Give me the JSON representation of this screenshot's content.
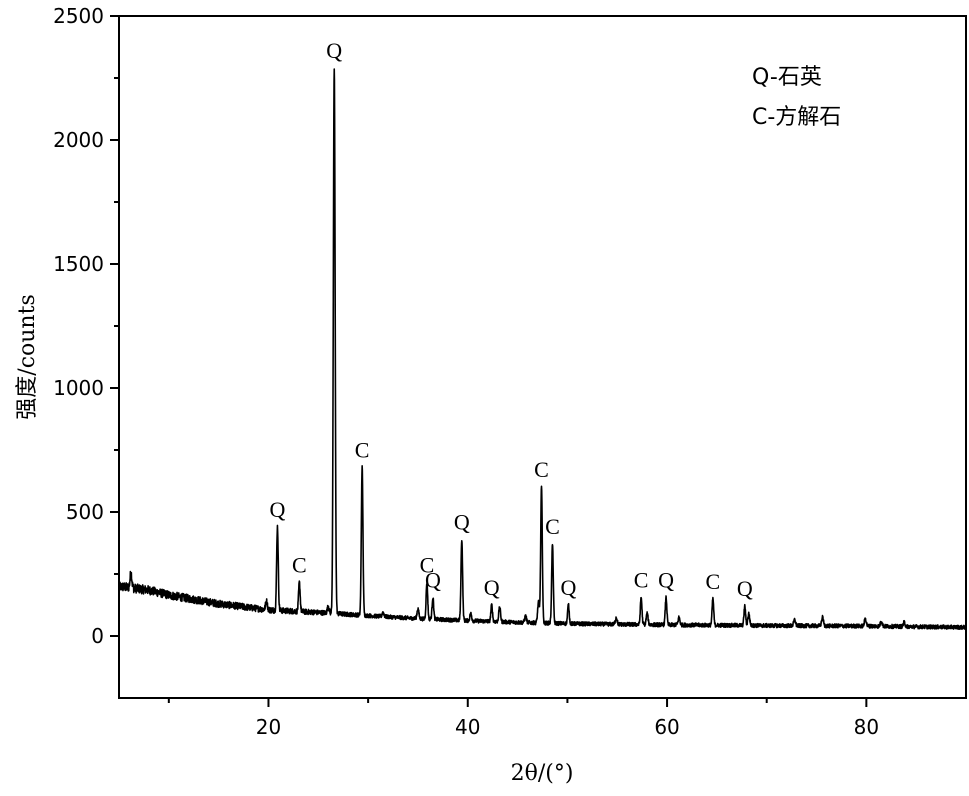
{
  "chart_data": {
    "type": "line",
    "xlabel": "2θ/(°)",
    "ylabel": "强度/counts",
    "xlim": [
      5,
      90
    ],
    "ylim": [
      -250,
      2500
    ],
    "x_ticks": [
      20,
      40,
      60,
      80
    ],
    "y_ticks": [
      0,
      500,
      1000,
      1500,
      2000,
      2500
    ],
    "x_minor_ticks": [
      10,
      30,
      50,
      70
    ],
    "grid": false,
    "legend": {
      "placement": "top-right",
      "entries": [
        "Q-石英",
        "C-方解石"
      ]
    },
    "peaks": [
      {
        "x": 20.9,
        "y": 440,
        "label": "Q"
      },
      {
        "x": 23.1,
        "y": 215,
        "label": "C"
      },
      {
        "x": 26.6,
        "y": 2290,
        "label": "Q"
      },
      {
        "x": 29.4,
        "y": 680,
        "label": "C"
      },
      {
        "x": 35.9,
        "y": 215,
        "label": "C"
      },
      {
        "x": 36.5,
        "y": 155,
        "label": "Q"
      },
      {
        "x": 39.4,
        "y": 390,
        "label": "Q"
      },
      {
        "x": 42.4,
        "y": 125,
        "label": "Q"
      },
      {
        "x": 47.4,
        "y": 600,
        "label": "C"
      },
      {
        "x": 48.5,
        "y": 370,
        "label": "C"
      },
      {
        "x": 50.1,
        "y": 125,
        "label": "Q"
      },
      {
        "x": 57.4,
        "y": 155,
        "label": "C"
      },
      {
        "x": 59.9,
        "y": 155,
        "label": "Q"
      },
      {
        "x": 64.6,
        "y": 150,
        "label": "C"
      },
      {
        "x": 67.8,
        "y": 120,
        "label": "Q"
      }
    ],
    "series": [
      {
        "baseline": [
          [
            5,
            200
          ],
          [
            8,
            185
          ],
          [
            10,
            165
          ],
          [
            15,
            130
          ],
          [
            20,
            105
          ],
          [
            25,
            95
          ],
          [
            30,
            82
          ],
          [
            35,
            70
          ],
          [
            40,
            62
          ],
          [
            45,
            55
          ],
          [
            50,
            50
          ],
          [
            55,
            47
          ],
          [
            60,
            45
          ],
          [
            70,
            42
          ],
          [
            80,
            40
          ],
          [
            90,
            35
          ]
        ],
        "minor_peaks": [
          {
            "x": 6.2,
            "y": 255
          },
          {
            "x": 19.8,
            "y": 140
          },
          {
            "x": 26.0,
            "y": 120
          },
          {
            "x": 31.5,
            "y": 95
          },
          {
            "x": 35.0,
            "y": 110
          },
          {
            "x": 40.3,
            "y": 90
          },
          {
            "x": 43.2,
            "y": 115
          },
          {
            "x": 45.8,
            "y": 80
          },
          {
            "x": 47.1,
            "y": 135
          },
          {
            "x": 54.9,
            "y": 75
          },
          {
            "x": 58.0,
            "y": 90
          },
          {
            "x": 61.2,
            "y": 75
          },
          {
            "x": 68.2,
            "y": 90
          },
          {
            "x": 72.8,
            "y": 65
          },
          {
            "x": 75.6,
            "y": 75
          },
          {
            "x": 79.9,
            "y": 70
          },
          {
            "x": 81.5,
            "y": 60
          },
          {
            "x": 83.8,
            "y": 55
          }
        ]
      }
    ]
  }
}
